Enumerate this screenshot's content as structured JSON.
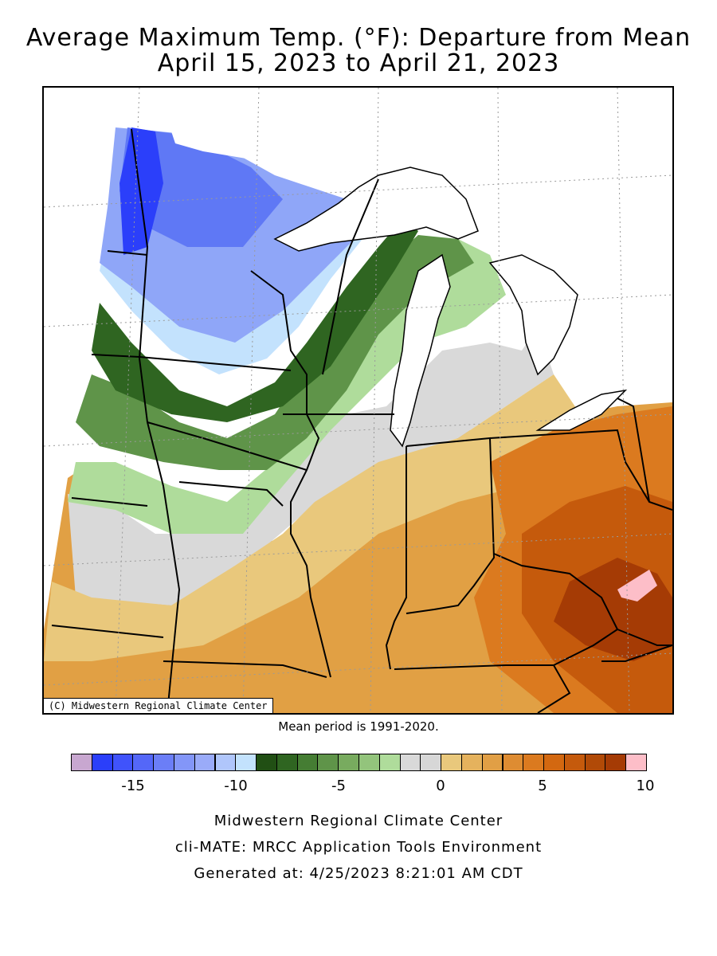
{
  "title": "Average Maximum Temp. (°F): Departure from Mean",
  "subtitle": "April 15, 2023 to April 21, 2023",
  "copyright": "(C) Midwestern Regional Climate Center",
  "mean_period": "Mean period is 1991-2020.",
  "legend": {
    "colors": [
      "#c8a7d0",
      "#2b3ffa",
      "#4053fb",
      "#5467f8",
      "#6b7ef7",
      "#8396f8",
      "#9aabf9",
      "#b0c6fb",
      "#c3e2fd",
      "#214f14",
      "#2f6521",
      "#457d33",
      "#5f9449",
      "#78ab5f",
      "#93c47c",
      "#afdc9b",
      "#d9d9d9",
      "#d7d7d7",
      "#e9c87c",
      "#e5b25d",
      "#e19f45",
      "#de8c32",
      "#db7a1f",
      "#d36810",
      "#c55a0c",
      "#b14a07",
      "#a53b05",
      "#fdbec8"
    ],
    "ticks": [
      "-15",
      "-10",
      "-5",
      "0",
      "5",
      "10"
    ]
  },
  "footer": {
    "line1": "Midwestern Regional Climate Center",
    "line2": "cli-MATE: MRCC Application Tools Environment",
    "line3": "Generated at: 4/25/2023 8:21:01 AM CDT"
  },
  "map": {
    "zones": {
      "cold_core": "#2b3ffa",
      "cold": "#5f78f5",
      "cool": "#8fa6f8",
      "cool_light": "#c3e2fd",
      "green_dark": "#2f6521",
      "green_mid": "#5f9449",
      "green_light": "#afdc9b",
      "neutral": "#d9d9d9",
      "warm_light": "#e9c87c",
      "warm": "#e1a044",
      "warm_orange": "#db7a1f",
      "hot": "#c55a0c",
      "hottest": "#a53b05",
      "extreme": "#fdbec8",
      "lake": "#ffffff"
    }
  }
}
